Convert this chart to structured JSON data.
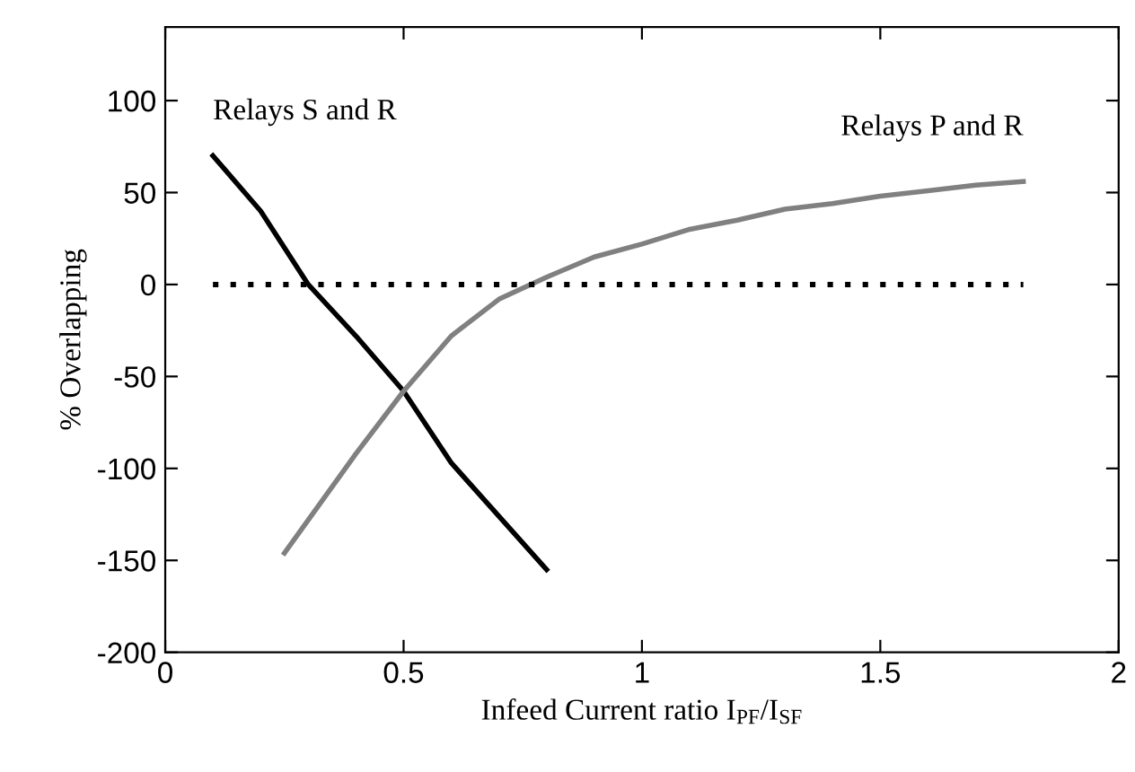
{
  "chart_data": {
    "type": "line",
    "xlabel": "Infeed Current ratio I$_{PF}$/I$_{SF}$",
    "ylabel": "% Overlapping",
    "xlim": [
      0,
      2
    ],
    "xticks": [
      0,
      0.5,
      1,
      1.5,
      2
    ],
    "ylim": [
      -200,
      140
    ],
    "yticks": [
      -200,
      -150,
      -100,
      -50,
      0,
      50,
      100
    ],
    "grid": false,
    "annotations": [
      {
        "text": "Relays S and R",
        "x": 0.1,
        "y": 70
      },
      {
        "text": "Relays P and R",
        "x": 1.8,
        "y": 56
      }
    ],
    "series": [
      {
        "color": "#000000",
        "line_style": "solid",
        "x": [
          0.1,
          0.2,
          0.3,
          0.4,
          0.5,
          0.6,
          0.7,
          0.8
        ],
        "values": [
          70,
          40,
          0,
          -28,
          -58,
          -97,
          -126,
          -155
        ]
      },
      {
        "color": "#808080",
        "line_style": "solid",
        "x": [
          0.25,
          0.4,
          0.5,
          0.6,
          0.7,
          0.8,
          0.9,
          1.0,
          1.1,
          1.2,
          1.3,
          1.4,
          1.5,
          1.6,
          1.7,
          1.8
        ],
        "values": [
          -146,
          -92,
          -58,
          -28,
          -8,
          4,
          15,
          22,
          30,
          35,
          41,
          44,
          48,
          51,
          54,
          56
        ]
      },
      {
        "color": "#000000",
        "line_style": "dotted",
        "x": [
          0.1,
          1.8
        ],
        "values": [
          0,
          0
        ]
      }
    ]
  }
}
